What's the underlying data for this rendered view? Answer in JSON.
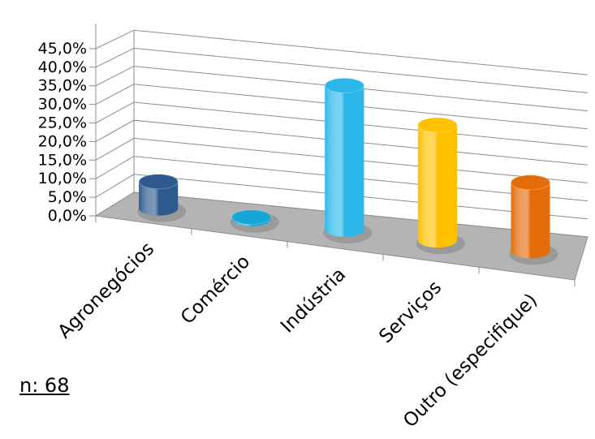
{
  "chart_data": {
    "type": "bar",
    "style": "3d-cylinder",
    "categories": [
      "Agronegócios",
      "Comércio",
      "Indústria",
      "Serviços",
      "Outro (especifique)"
    ],
    "values": [
      7.4,
      0.5,
      40.0,
      32.0,
      19.0
    ],
    "colors": [
      "#2e5a8e",
      "#16a6d8",
      "#2cb7ea",
      "#ffc000",
      "#e36c09"
    ],
    "yticks": [
      "0,0%",
      "5,0%",
      "10,0%",
      "15,0%",
      "20,0%",
      "25,0%",
      "30,0%",
      "35,0%",
      "40,0%",
      "45,0%"
    ],
    "ylim": [
      0,
      45
    ],
    "grid": true,
    "legend": "none"
  },
  "note": "n: 68"
}
